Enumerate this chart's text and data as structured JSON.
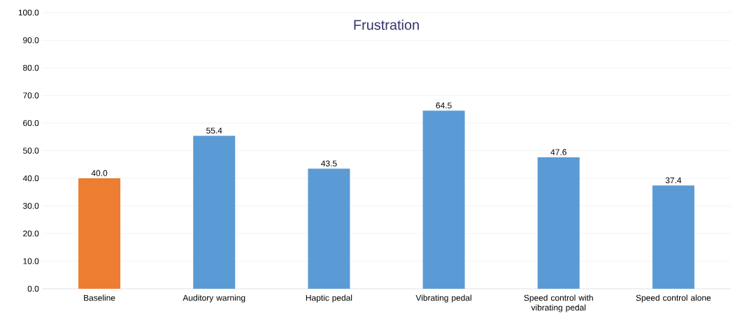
{
  "chart_data": {
    "type": "bar",
    "title": "Frustration",
    "categories": [
      "Baseline",
      "Auditory warning",
      "Haptic pedal",
      "Vibrating pedal",
      "Speed control with vibrating pedal",
      "Speed control alone"
    ],
    "values": [
      40.0,
      55.4,
      43.5,
      64.5,
      47.6,
      37.4
    ],
    "value_labels": [
      "40.0",
      "55.4",
      "43.5",
      "64.5",
      "47.6",
      "37.4"
    ],
    "colors": [
      "#ed7d31",
      "#5b9bd5",
      "#5b9bd5",
      "#5b9bd5",
      "#5b9bd5",
      "#5b9bd5"
    ],
    "ylim": [
      0,
      100
    ],
    "yticks": [
      {
        "value": 0,
        "label": "0.0"
      },
      {
        "value": 10,
        "label": "10.0"
      },
      {
        "value": 20,
        "label": "20.0"
      },
      {
        "value": 30,
        "label": "30.0"
      },
      {
        "value": 40,
        "label": "40.0"
      },
      {
        "value": 50,
        "label": "50.0"
      },
      {
        "value": 60,
        "label": "60.0"
      },
      {
        "value": 70,
        "label": "70.0"
      },
      {
        "value": 80,
        "label": "80.0"
      },
      {
        "value": 90,
        "label": "90.0"
      },
      {
        "value": 100,
        "label": "100.0"
      }
    ],
    "grid": "y"
  }
}
